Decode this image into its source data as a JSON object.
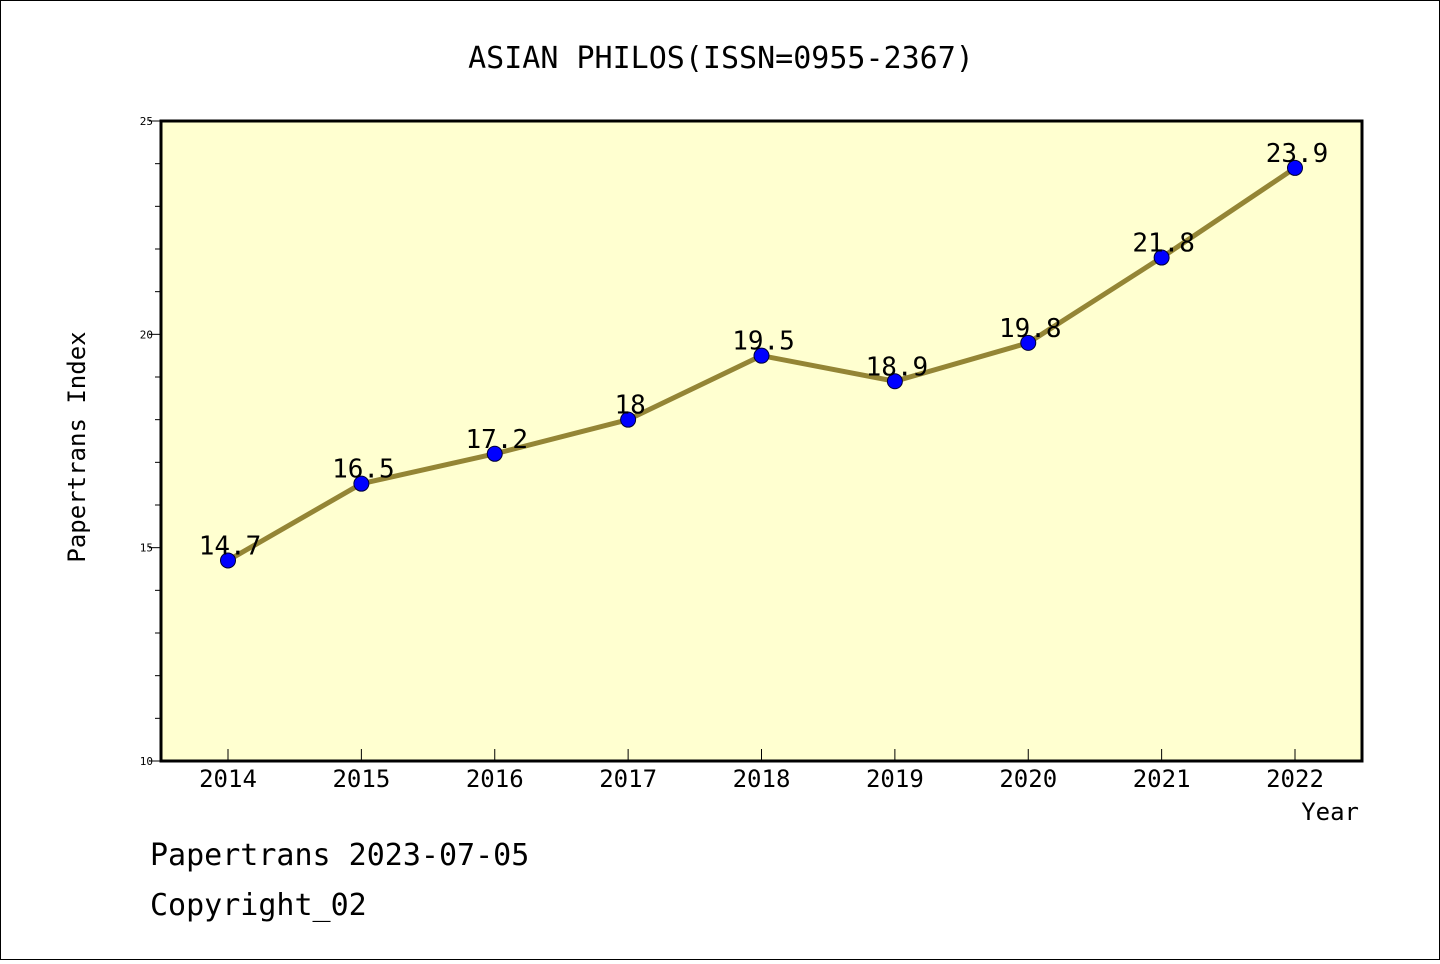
{
  "chart_data": {
    "type": "line",
    "title": "ASIAN PHILOS(ISSN=0955-2367)",
    "xlabel": "Year",
    "ylabel": "Papertrans Index",
    "categories": [
      "2014",
      "2015",
      "2016",
      "2017",
      "2018",
      "2019",
      "2020",
      "2021",
      "2022"
    ],
    "series": [
      {
        "values": [
          14.7,
          16.5,
          17.2,
          18,
          19.5,
          18.9,
          19.8,
          21.8,
          23.9
        ]
      }
    ],
    "data_labels": [
      "14.7",
      "16.5",
      "17.2",
      "18",
      "19.5",
      "18.9",
      "19.8",
      "21.8",
      "23.9"
    ],
    "ylim": [
      10,
      25
    ],
    "yticks": [
      10,
      15,
      20,
      25
    ],
    "grid": false,
    "colors": {
      "plot_background": "#ffffd0",
      "line": "#948535",
      "marker": "#0000ff"
    }
  },
  "footer": {
    "date_line": "Papertrans 2023-07-05",
    "copyright": "Copyright_02"
  }
}
